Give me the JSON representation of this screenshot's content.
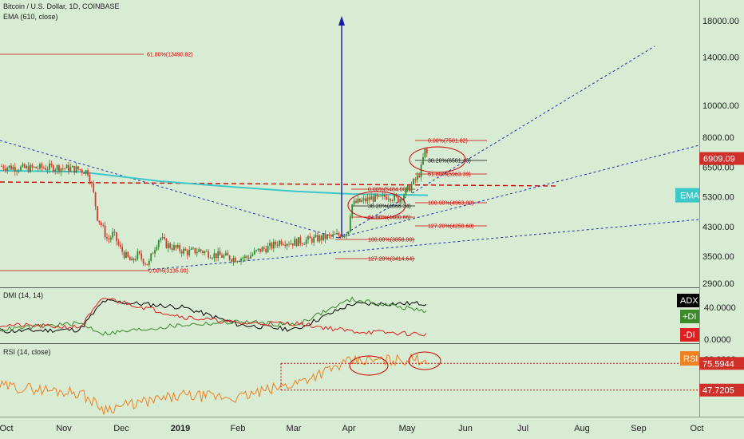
{
  "header": {
    "symbol": "Bitcoin / U.S. Dollar, 1D, COINBASE",
    "indicator": "EMA (610, close)"
  },
  "panes": {
    "dmi_title": "DMI (14, 14)",
    "rsi_title": "RSI (14, close)"
  },
  "price_axis": {
    "ticks": [
      "18000.00",
      "14000.00",
      "10000.00",
      "8000.00",
      "6500.00",
      "5300.00",
      "4300.00",
      "3500.00",
      "2900.00"
    ],
    "current_price_tag": "6909.09",
    "ema_tag": "EMA"
  },
  "dmi_axis": {
    "ticks": [
      "40.0000",
      "0.0000"
    ],
    "adx_tag": "ADX",
    "plus_di_tag": "+DI",
    "minus_di_tag": "-DI"
  },
  "rsi_axis": {
    "ticks": [
      "80.0000"
    ],
    "rsi_tag": "RSI",
    "upper_tag": "75.5944",
    "lower_tag": "47.7205"
  },
  "time_axis": {
    "labels": [
      "Oct",
      "Nov",
      "Dec",
      "2019",
      "Feb",
      "Mar",
      "Apr",
      "May",
      "Jun",
      "Jul",
      "Aug",
      "Sep",
      "Oct"
    ]
  },
  "fib_labels": {
    "big_618": "61.80%(13490.82)",
    "low_0": "0.00%(3135.00)",
    "a_0": "0.00%(7581.82)",
    "a_382": "38.20%(6581.43)",
    "a_618": "61.80%(5963.39)",
    "a_100": "100.00%(4963.00)",
    "a_1272": "127.20%(4250.68)",
    "b_0": "0.00%(5484.00)",
    "b_382": "38.20%(4866.34)",
    "b_618": "61.80%(4480.66)",
    "b_100": "100.00%(3858.00)",
    "b_1272": "127.20%(3414.64)"
  },
  "colors": {
    "background": "#d8ecd4",
    "candle_up": "#2e8b2e",
    "candle_down": "#d63b2f",
    "ema": "#3cc8c8",
    "fib_red": "#d00000",
    "trend_blue": "#2233aa",
    "arrow": "#1a1aa0",
    "adx": "#000000",
    "plus_di": "#3a8a2a",
    "minus_di": "#e02020",
    "rsi": "#f08020",
    "current_tag": "#d0302a",
    "ema_tag": "#3cc8c8"
  },
  "chart_data": [
    {
      "type": "candlestick",
      "title": "Bitcoin / U.S. Dollar, 1D, COINBASE",
      "scale": "log",
      "ylim": [
        2700,
        21000
      ],
      "x_range": [
        "Oct 2018",
        "Oct 2019"
      ],
      "series": [
        {
          "name": "BTCUSD",
          "x": [
            "Oct",
            "Oct",
            "Nov",
            "Nov",
            "Nov",
            "Dec",
            "Dec",
            "Dec",
            "2019",
            "2019",
            "Feb",
            "Feb",
            "Mar",
            "Mar",
            "Apr",
            "Apr",
            "May",
            "May"
          ],
          "close": [
            6550,
            6450,
            6400,
            6350,
            4300,
            4000,
            3400,
            3900,
            3800,
            3500,
            3500,
            3700,
            3850,
            4000,
            5200,
            5300,
            5900,
            7300
          ]
        },
        {
          "name": "EMA (610, close)",
          "x": [
            "Oct",
            "Nov",
            "Dec",
            "2019",
            "Feb",
            "Mar",
            "Apr",
            "May"
          ],
          "values": [
            6350,
            6300,
            6100,
            5850,
            5650,
            5500,
            5400,
            5350
          ]
        }
      ],
      "last_price": 6909.09
    },
    {
      "type": "line",
      "title": "DMI (14, 14)",
      "ylim": [
        0,
        60
      ],
      "series": [
        {
          "name": "ADX",
          "x": [
            "Oct",
            "Nov",
            "Dec",
            "2019",
            "Feb",
            "Mar",
            "Apr",
            "May"
          ],
          "values": [
            10,
            12,
            48,
            40,
            18,
            12,
            44,
            45
          ]
        },
        {
          "name": "+DI",
          "x": [
            "Oct",
            "Nov",
            "Dec",
            "2019",
            "Feb",
            "Mar",
            "Apr",
            "May"
          ],
          "values": [
            12,
            20,
            7,
            18,
            22,
            18,
            50,
            35
          ]
        },
        {
          "name": "-DI",
          "x": [
            "Oct",
            "Nov",
            "Dec",
            "2019",
            "Feb",
            "Mar",
            "Apr",
            "May"
          ],
          "values": [
            18,
            15,
            52,
            28,
            20,
            20,
            10,
            6
          ]
        }
      ]
    },
    {
      "type": "line",
      "title": "RSI (14, close)",
      "ylim": [
        20,
        90
      ],
      "series": [
        {
          "name": "RSI",
          "x": [
            "Oct",
            "Nov",
            "Dec",
            "2019",
            "Feb",
            "Mar",
            "Apr",
            "May"
          ],
          "values": [
            52,
            45,
            28,
            42,
            40,
            55,
            78,
            80
          ]
        }
      ],
      "levels": [
        75.5944,
        47.7205
      ]
    }
  ]
}
